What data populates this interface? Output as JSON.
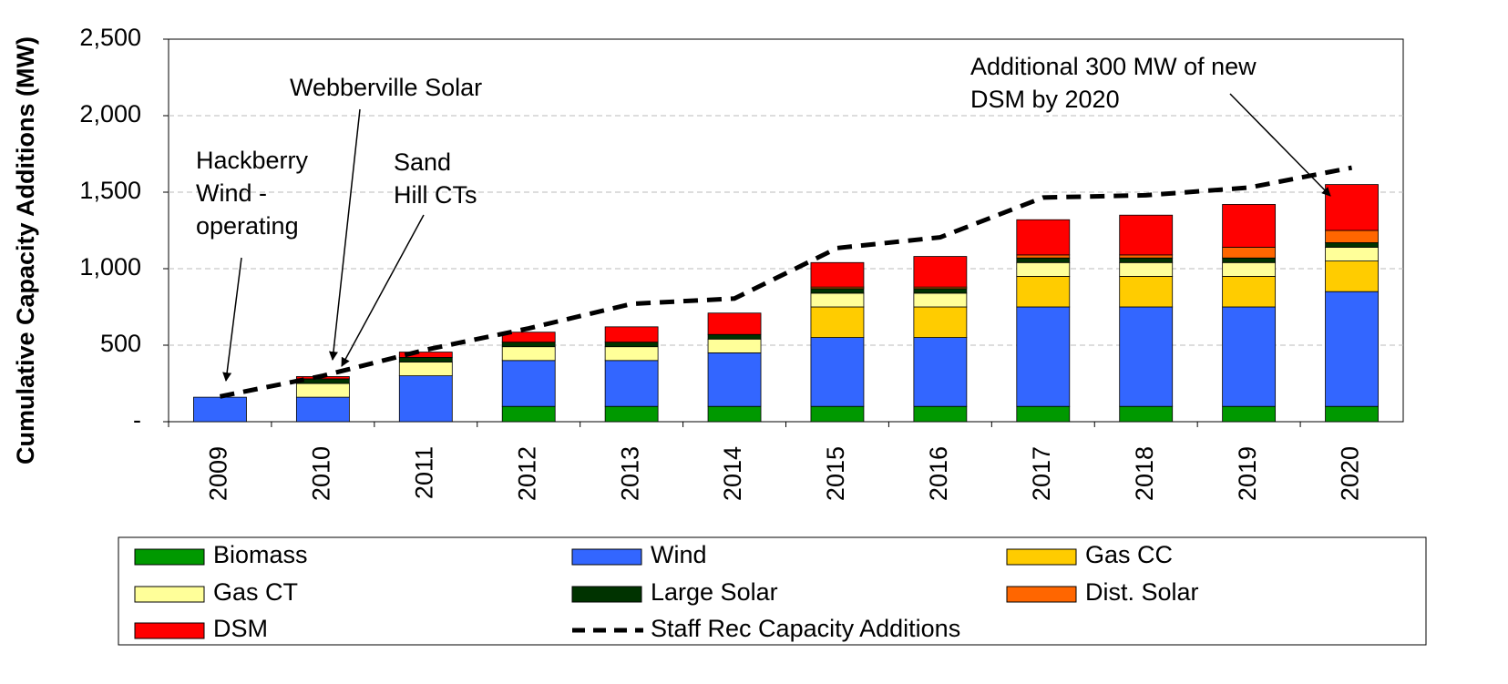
{
  "chart_data": {
    "type": "bar",
    "stacked": true,
    "y_label": "Cumulative Capacity Additions (MW)",
    "categories": [
      "2009",
      "2010",
      "2011",
      "2012",
      "2013",
      "2014",
      "2015",
      "2016",
      "2017",
      "2018",
      "2019",
      "2020"
    ],
    "series": [
      {
        "name": "Biomass",
        "color": "#009900",
        "values": [
          0,
          0,
          0,
          100,
          100,
          100,
          100,
          100,
          100,
          100,
          100,
          100
        ]
      },
      {
        "name": "Wind",
        "color": "#3366ff",
        "values": [
          160,
          160,
          300,
          300,
          300,
          350,
          450,
          450,
          650,
          650,
          650,
          750
        ]
      },
      {
        "name": "Gas CC",
        "color": "#ffcc00",
        "values": [
          0,
          0,
          0,
          0,
          0,
          0,
          200,
          200,
          200,
          200,
          200,
          200
        ]
      },
      {
        "name": "Gas CT",
        "color": "#ffff99",
        "values": [
          0,
          90,
          90,
          90,
          90,
          90,
          90,
          90,
          90,
          90,
          90,
          90
        ]
      },
      {
        "name": "Large Solar",
        "color": "#003300",
        "values": [
          0,
          30,
          30,
          30,
          30,
          30,
          30,
          30,
          30,
          30,
          30,
          30
        ]
      },
      {
        "name": "Dist. Solar",
        "color": "#ff6600",
        "values": [
          0,
          0,
          0,
          0,
          0,
          0,
          10,
          10,
          20,
          20,
          70,
          80
        ]
      },
      {
        "name": "DSM",
        "color": "#ff0000",
        "values": [
          0,
          15,
          35,
          65,
          100,
          140,
          160,
          200,
          230,
          260,
          280,
          300
        ]
      },
      {
        "name": "Staff Rec Capacity Additions",
        "type": "line",
        "color": "#000000",
        "values": [
          165,
          300,
          470,
          610,
          770,
          805,
          1135,
          1205,
          1465,
          1480,
          1530,
          1660
        ]
      }
    ],
    "ylim": [
      0,
      2500
    ],
    "yticks": [
      {
        "value": 0,
        "label": "-"
      },
      500,
      {
        "value": 1000,
        "label": "1,000"
      },
      {
        "value": 1500,
        "label": "1,500"
      },
      {
        "value": 2000,
        "label": "2,000"
      },
      {
        "value": 2500,
        "label": "2,500"
      }
    ],
    "grid": true,
    "legend": "bottom",
    "annotations": [
      {
        "lines": [
          "Hackberry",
          "Wind -",
          "operating"
        ]
      },
      {
        "lines": [
          "Webberville Solar"
        ]
      },
      {
        "lines": [
          "Sand",
          "Hill CTs"
        ]
      },
      {
        "lines": [
          "Additional 300 MW of new",
          "DSM by 2020"
        ]
      }
    ]
  }
}
